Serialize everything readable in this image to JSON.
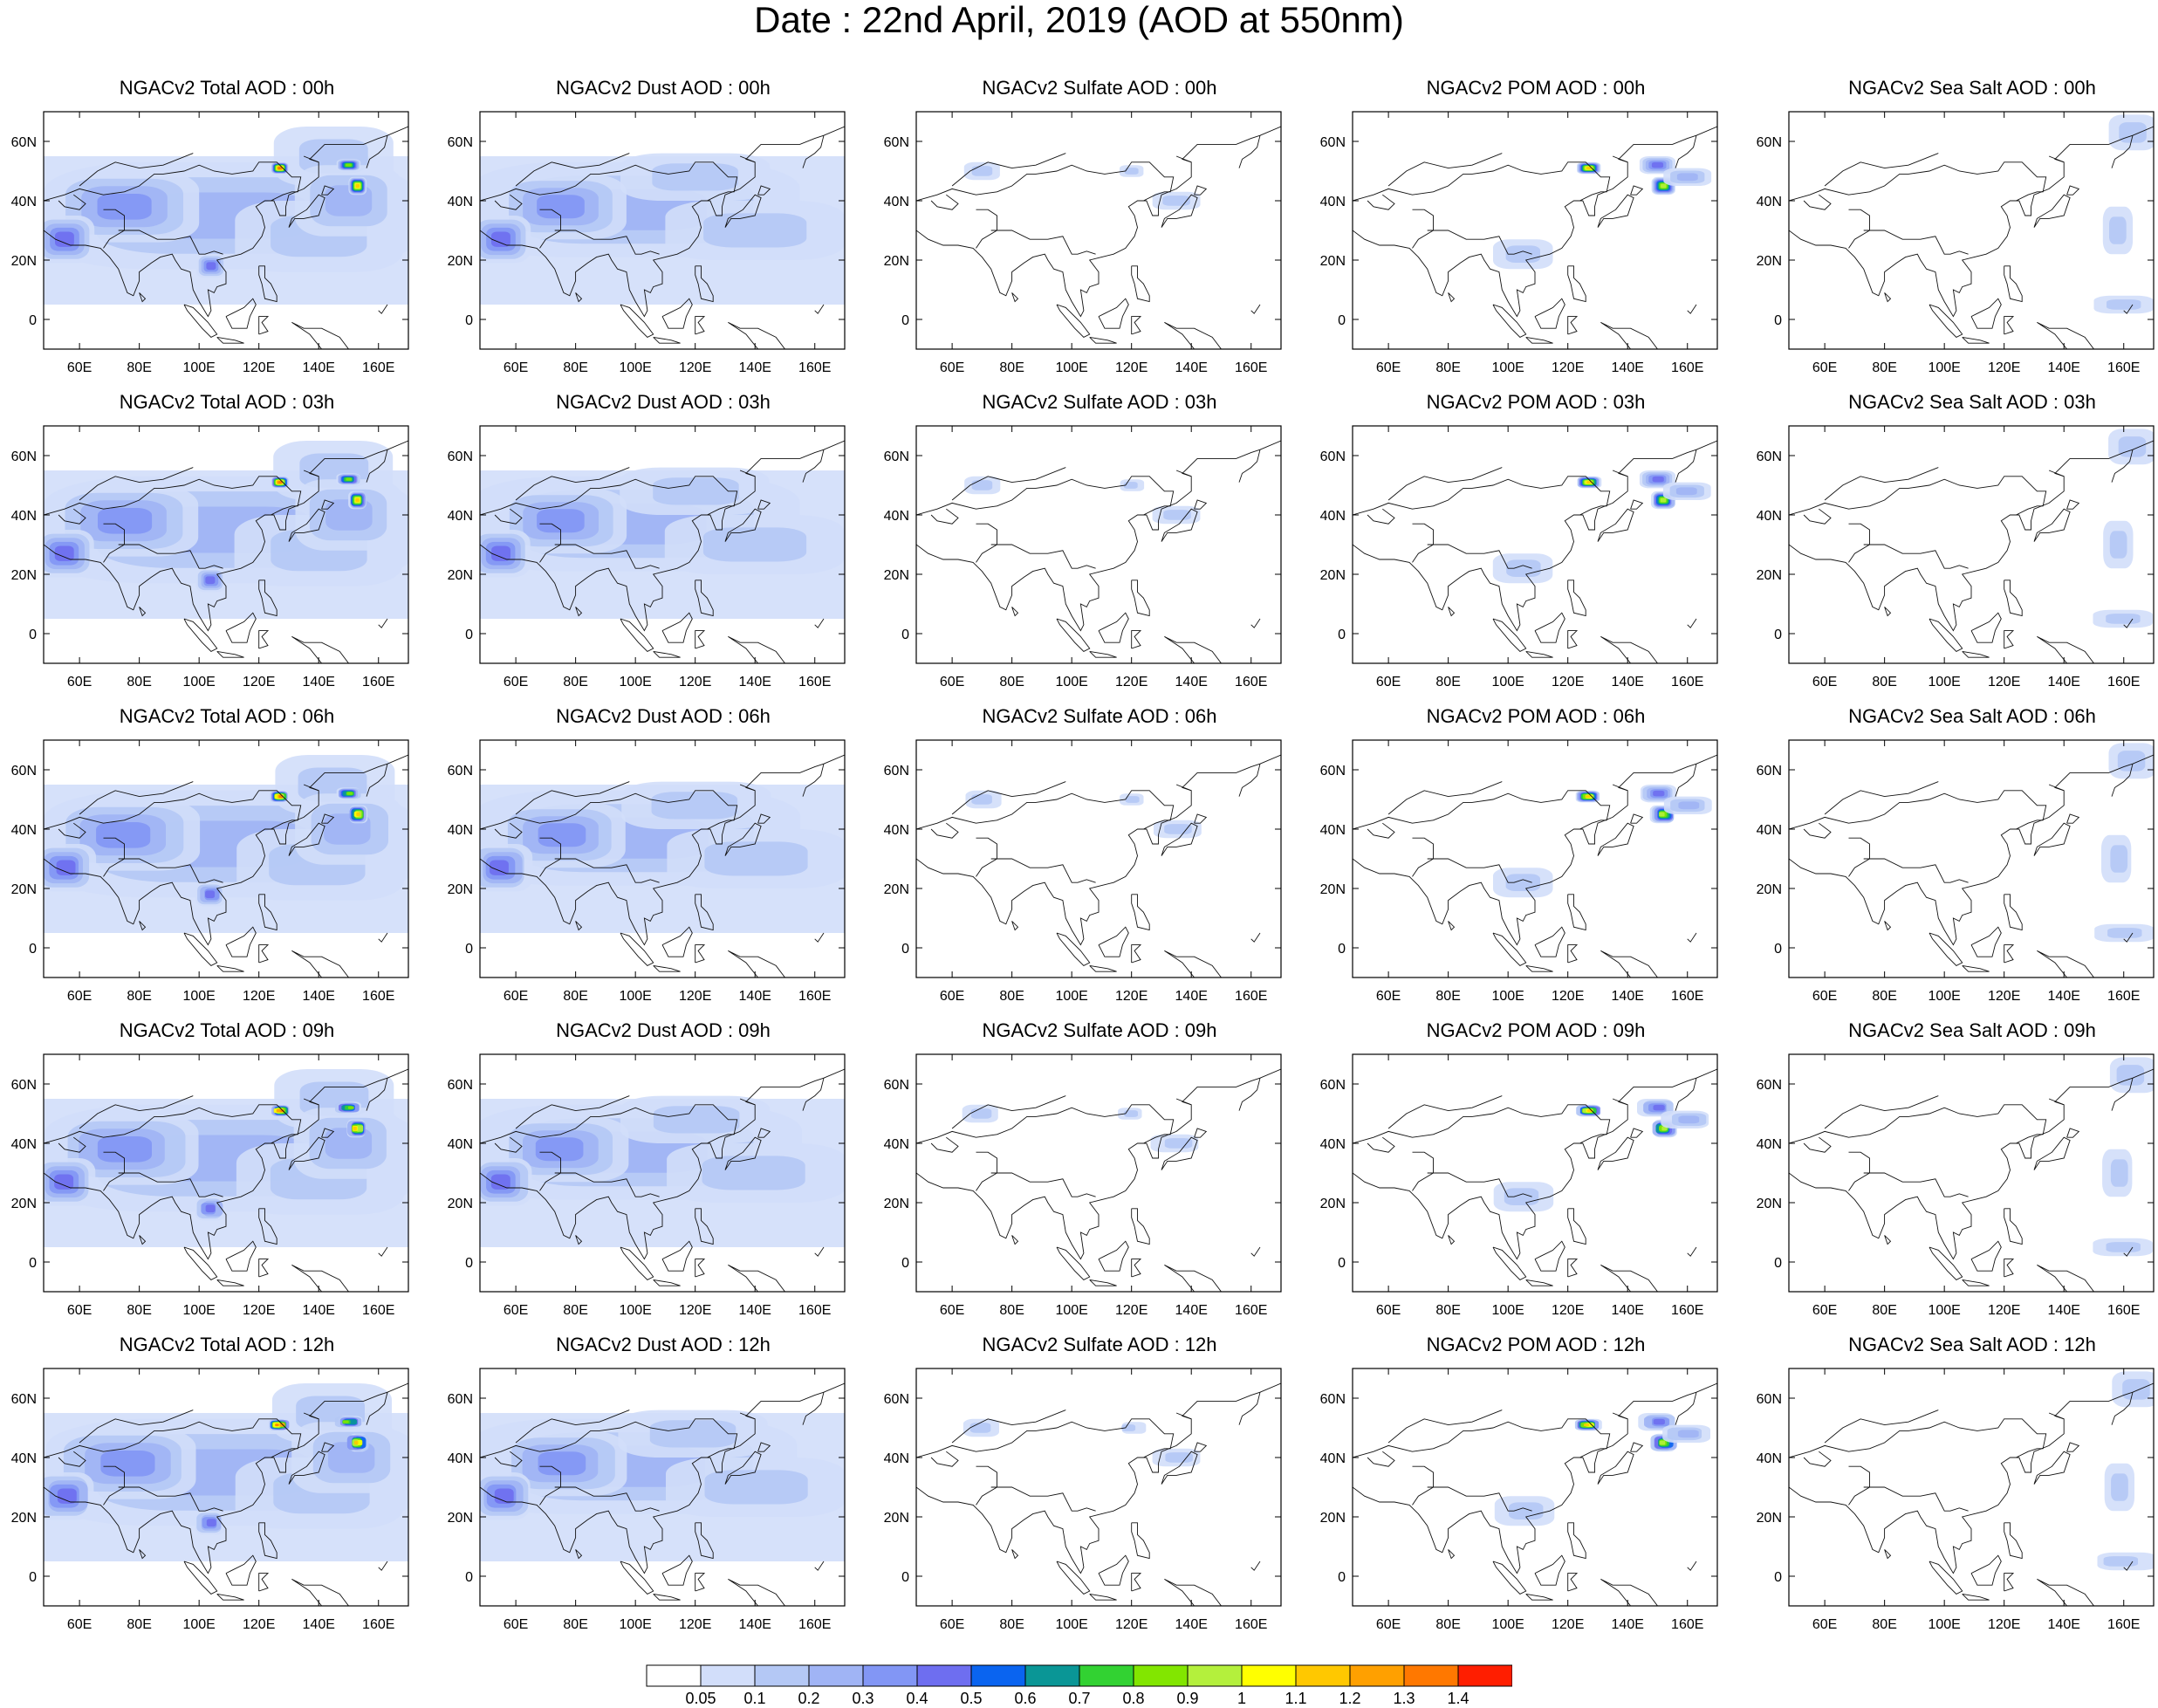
{
  "title": "Date : 22nd April, 2019 (AOD at 550nm)",
  "axis": {
    "x_ticks": [
      "60E",
      "80E",
      "100E",
      "120E",
      "140E",
      "160E"
    ],
    "y_ticks": [
      "60N",
      "40N",
      "20N",
      "0"
    ],
    "lon_range": [
      48,
      170
    ],
    "lat_range": [
      -10,
      70
    ]
  },
  "panels": [
    [
      "NGACv2 Total AOD : 00h",
      "NGACv2 Dust AOD : 00h",
      "NGACv2 Sulfate AOD : 00h",
      "NGACv2 POM AOD : 00h",
      "NGACv2 Sea Salt AOD : 00h"
    ],
    [
      "NGACv2 Total AOD : 03h",
      "NGACv2 Dust AOD : 03h",
      "NGACv2 Sulfate AOD : 03h",
      "NGACv2 POM AOD : 03h",
      "NGACv2 Sea Salt AOD : 03h"
    ],
    [
      "NGACv2 Total AOD : 06h",
      "NGACv2 Dust AOD : 06h",
      "NGACv2 Sulfate AOD : 06h",
      "NGACv2 POM AOD : 06h",
      "NGACv2 Sea Salt AOD : 06h"
    ],
    [
      "NGACv2 Total AOD : 09h",
      "NGACv2 Dust AOD : 09h",
      "NGACv2 Sulfate AOD : 09h",
      "NGACv2 POM AOD : 09h",
      "NGACv2 Sea Salt  AOD : 09h"
    ],
    [
      "NGACv2 Total AOD  : 12h",
      "NGACv2 Dust AOD : 12h",
      "NGACv2 Sulfate AOD : 12h",
      "NGACv2 POM  AOD : 12h",
      "NGACv2 Sea Salt  AOD : 12h"
    ]
  ],
  "colorbar": {
    "labels": [
      "0.05",
      "0.1",
      "0.2",
      "0.3",
      "0.4",
      "0.5",
      "0.6",
      "0.7",
      "0.8",
      "0.9",
      "1",
      "1.1",
      "1.2",
      "1.3",
      "1.4"
    ],
    "colors": [
      "#ffffff",
      "#d2defa",
      "#b4c8f5",
      "#a0b4f5",
      "#8296f5",
      "#6e6ef0",
      "#0a64f0",
      "#0a9696",
      "#32d232",
      "#82e600",
      "#b4f03c",
      "#ffff00",
      "#ffc800",
      "#ffa000",
      "#ff7800",
      "#ff1e00"
    ]
  },
  "features": [
    {
      "kind": "total",
      "blobs": [
        {
          "lon": 110,
          "lat": 35,
          "rx": 62,
          "ry": 18,
          "v": 0.22
        },
        {
          "lon": 75,
          "lat": 38,
          "rx": 25,
          "ry": 12,
          "v": 0.35
        },
        {
          "lon": 55,
          "lat": 27,
          "rx": 10,
          "ry": 8,
          "v": 0.42
        },
        {
          "lon": 140,
          "lat": 28,
          "rx": 28,
          "ry": 12,
          "v": 0.18
        },
        {
          "lon": 145,
          "lat": 55,
          "rx": 20,
          "ry": 10,
          "v": 0.15
        },
        {
          "lon": 150,
          "lat": 40,
          "rx": 18,
          "ry": 12,
          "v": 0.2
        },
        {
          "lon": 104,
          "lat": 18,
          "rx": 5,
          "ry": 4,
          "v": 0.45
        },
        {
          "lon": 127,
          "lat": 51,
          "rx": 3,
          "ry": 2,
          "v": 1.35
        },
        {
          "lon": 153,
          "lat": 45,
          "rx": 3,
          "ry": 3,
          "v": 1.1
        },
        {
          "lon": 150,
          "lat": 52,
          "rx": 4,
          "ry": 2,
          "v": 0.85
        }
      ]
    },
    {
      "kind": "dust",
      "blobs": [
        {
          "lon": 100,
          "lat": 37,
          "rx": 55,
          "ry": 16,
          "v": 0.22
        },
        {
          "lon": 75,
          "lat": 38,
          "rx": 22,
          "ry": 11,
          "v": 0.35
        },
        {
          "lon": 55,
          "lat": 27,
          "rx": 10,
          "ry": 8,
          "v": 0.42
        },
        {
          "lon": 140,
          "lat": 30,
          "rx": 30,
          "ry": 10,
          "v": 0.15
        },
        {
          "lon": 120,
          "lat": 48,
          "rx": 25,
          "ry": 8,
          "v": 0.18
        }
      ]
    },
    {
      "kind": "sulfate",
      "blobs": [
        {
          "lon": 70,
          "lat": 50,
          "rx": 6,
          "ry": 3,
          "v": 0.12
        },
        {
          "lon": 120,
          "lat": 50,
          "rx": 4,
          "ry": 2,
          "v": 0.1
        },
        {
          "lon": 135,
          "lat": 40,
          "rx": 8,
          "ry": 3,
          "v": 0.1
        }
      ]
    },
    {
      "kind": "pom",
      "blobs": [
        {
          "lon": 127,
          "lat": 51,
          "rx": 4,
          "ry": 2,
          "v": 1.1
        },
        {
          "lon": 152,
          "lat": 45,
          "rx": 4,
          "ry": 3,
          "v": 0.9
        },
        {
          "lon": 150,
          "lat": 52,
          "rx": 6,
          "ry": 3,
          "v": 0.4
        },
        {
          "lon": 105,
          "lat": 22,
          "rx": 10,
          "ry": 5,
          "v": 0.15
        },
        {
          "lon": 160,
          "lat": 48,
          "rx": 8,
          "ry": 3,
          "v": 0.2
        }
      ]
    },
    {
      "kind": "seasalt",
      "blobs": [
        {
          "lon": 163,
          "lat": 63,
          "rx": 8,
          "ry": 6,
          "v": 0.15
        },
        {
          "lon": 160,
          "lat": 5,
          "rx": 10,
          "ry": 3,
          "v": 0.1
        },
        {
          "lon": 158,
          "lat": 30,
          "rx": 5,
          "ry": 8,
          "v": 0.1
        }
      ]
    }
  ]
}
